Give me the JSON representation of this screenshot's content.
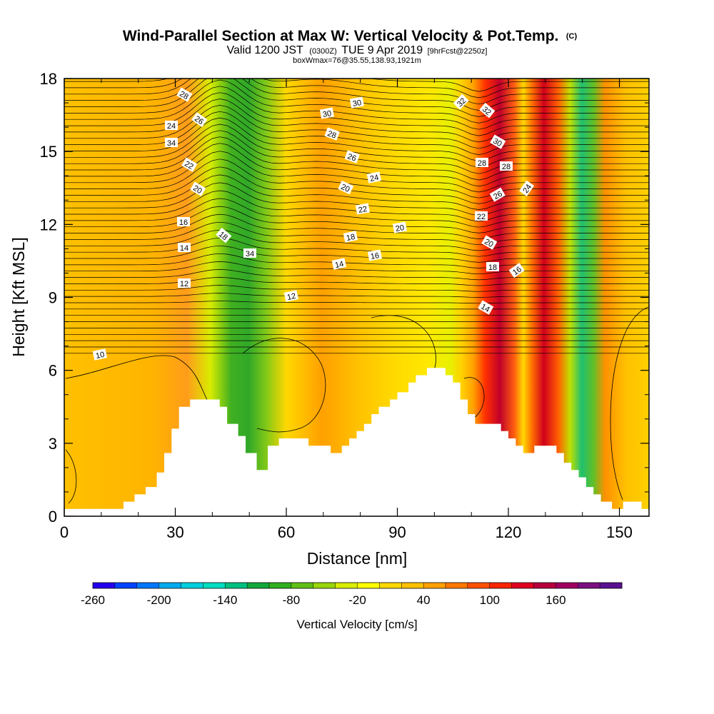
{
  "chart_data": {
    "type": "heatmap",
    "title": "Wind-Parallel Section at Max W: Vertical Velocity & Pot.Temp.",
    "title_mark": "(C)",
    "subtitle": {
      "part1": "Valid 1200 JST",
      "part2": "(0300Z)",
      "part3": "TUE 9 Apr 2019",
      "part4": "[9hrFcst@2250z]"
    },
    "subtitle2": "boxWmax=76@35.55,138.93,1921m",
    "xlabel": "Distance [nm]",
    "ylabel": "Height [Kft MSL]",
    "xlim": [
      0,
      158
    ],
    "ylim": [
      0,
      18
    ],
    "x_ticks": [
      0,
      30,
      60,
      90,
      120,
      150
    ],
    "y_ticks": [
      0,
      3,
      6,
      9,
      12,
      15,
      18
    ],
    "grid": false,
    "colorbar": {
      "label": "Vertical Velocity [cm/s]",
      "tick_labels": [
        "-260",
        "-200",
        "-140",
        "-80",
        "-20",
        "40",
        "100",
        "160"
      ],
      "colors": [
        "#2200ee",
        "#0044ff",
        "#0077ff",
        "#00aaee",
        "#00d0dd",
        "#00dcc0",
        "#00c080",
        "#14a83c",
        "#30b020",
        "#60c018",
        "#9ad40a",
        "#d8ec00",
        "#ffff00",
        "#ffd800",
        "#ffc000",
        "#ffa000",
        "#ff7800",
        "#ff5000",
        "#ff2400",
        "#e00020",
        "#b8003c",
        "#a00060",
        "#7c1080",
        "#5a1090"
      ]
    },
    "contour_labels": [
      "10",
      "12",
      "12",
      "14",
      "14",
      "14",
      "16",
      "16",
      "16",
      "18",
      "18",
      "18",
      "20",
      "20",
      "20",
      "20",
      "22",
      "22",
      "22",
      "24",
      "24",
      "24",
      "26",
      "26",
      "26",
      "28",
      "28",
      "28",
      "28",
      "30",
      "30",
      "30",
      "32",
      "32",
      "34",
      "34",
      "36"
    ],
    "terrain_heights": [
      [
        0,
        0.3
      ],
      [
        5,
        0.3
      ],
      [
        10,
        0.3
      ],
      [
        15,
        0.3
      ],
      [
        16,
        0.6
      ],
      [
        19,
        0.9
      ],
      [
        22,
        1.2
      ],
      [
        25,
        1.8
      ],
      [
        27,
        2.6
      ],
      [
        29,
        3.6
      ],
      [
        31,
        4.5
      ],
      [
        34,
        4.8
      ],
      [
        40,
        4.8
      ],
      [
        42,
        4.5
      ],
      [
        44,
        3.8
      ],
      [
        47,
        3.3
      ],
      [
        49,
        2.6
      ],
      [
        52,
        1.9
      ],
      [
        55,
        2.9
      ],
      [
        58,
        3.2
      ],
      [
        61,
        3.2
      ],
      [
        64,
        3.2
      ],
      [
        66,
        2.9
      ],
      [
        70,
        2.9
      ],
      [
        72,
        2.6
      ],
      [
        75,
        2.9
      ],
      [
        77,
        3.2
      ],
      [
        79,
        3.5
      ],
      [
        81,
        3.8
      ],
      [
        83,
        4.2
      ],
      [
        85,
        4.5
      ],
      [
        88,
        4.8
      ],
      [
        90,
        5.1
      ],
      [
        93,
        5.5
      ],
      [
        95,
        5.8
      ],
      [
        98,
        6.1
      ],
      [
        101,
        6.1
      ],
      [
        103,
        5.8
      ],
      [
        105,
        5.5
      ],
      [
        107,
        4.8
      ],
      [
        109,
        4.2
      ],
      [
        111,
        3.8
      ],
      [
        115,
        3.8
      ],
      [
        118,
        3.5
      ],
      [
        120,
        3.2
      ],
      [
        122,
        2.9
      ],
      [
        124,
        2.6
      ],
      [
        127,
        2.9
      ],
      [
        130,
        2.9
      ],
      [
        133,
        2.6
      ],
      [
        135,
        2.2
      ],
      [
        137,
        1.9
      ],
      [
        139,
        1.6
      ],
      [
        141,
        1.2
      ],
      [
        143,
        0.9
      ],
      [
        145,
        0.6
      ],
      [
        148,
        0.3
      ],
      [
        151,
        0.6
      ],
      [
        155,
        0.6
      ],
      [
        156,
        0.3
      ],
      [
        158,
        0.3
      ]
    ]
  }
}
